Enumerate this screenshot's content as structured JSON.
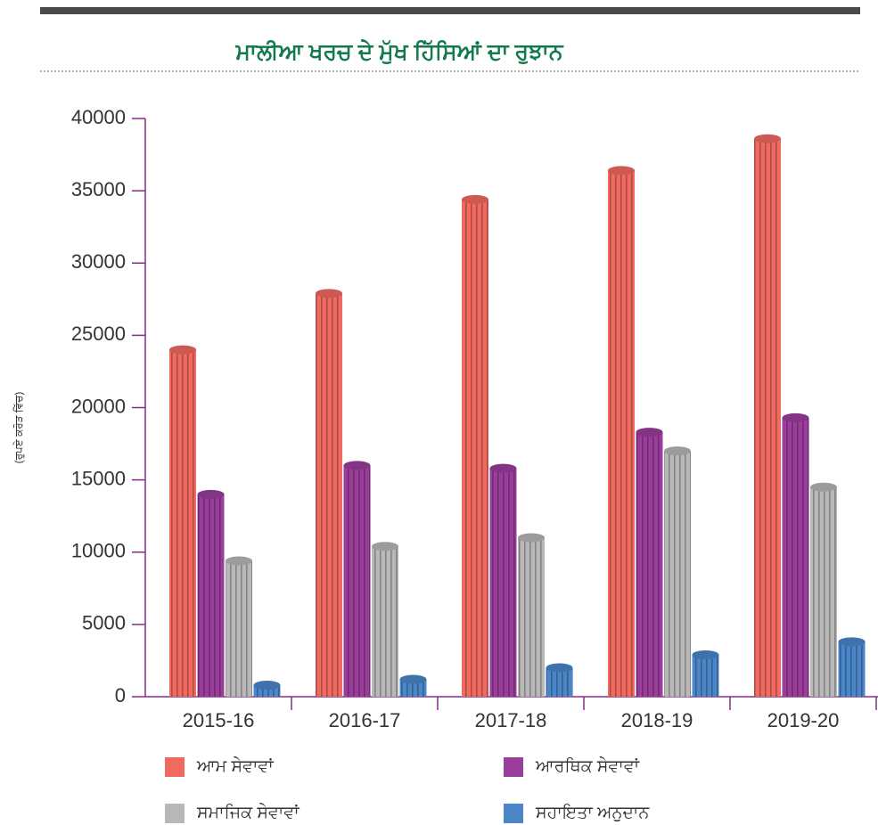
{
  "chart_data": {
    "type": "bar",
    "title": "ਮਾਲੀਆ ਖਰਚ ਦੇ ਮੁੱਖ ਹਿੱਸਿਆਂ ਦਾ ਰੁਝਾਨ",
    "y_label": "(ਰੁਪਏ ਕਰੋੜ ਵਿੱਚ)",
    "categories": [
      "2015-16",
      "2016-17",
      "2017-18",
      "2018-19",
      "2019-20"
    ],
    "series": [
      {
        "name": "ਆਮ ਸੇਵਾਵਾਂ",
        "color": "#f06a60",
        "values": [
          24000,
          27900,
          34400,
          36400,
          38600
        ]
      },
      {
        "name": "ਆਰਥਿਕ ਸੇਵਾਵਾਂ",
        "color": "#9b3d9b",
        "values": [
          14000,
          16000,
          15800,
          18300,
          19300
        ]
      },
      {
        "name": "ਸਮਾਜਿਕ ਸੇਵਾਵਾਂ",
        "color": "#b8b8b8",
        "values": [
          9400,
          10400,
          11000,
          17000,
          14500
        ]
      },
      {
        "name": "ਸਹਾਇਤਾ ਅਨੁਦਾਨ",
        "color": "#4a86c8",
        "values": [
          800,
          1200,
          2000,
          2900,
          3800
        ]
      }
    ],
    "ylim": [
      0,
      40000
    ],
    "yticks": [
      0,
      5000,
      10000,
      15000,
      20000,
      25000,
      30000,
      35000,
      40000
    ]
  }
}
